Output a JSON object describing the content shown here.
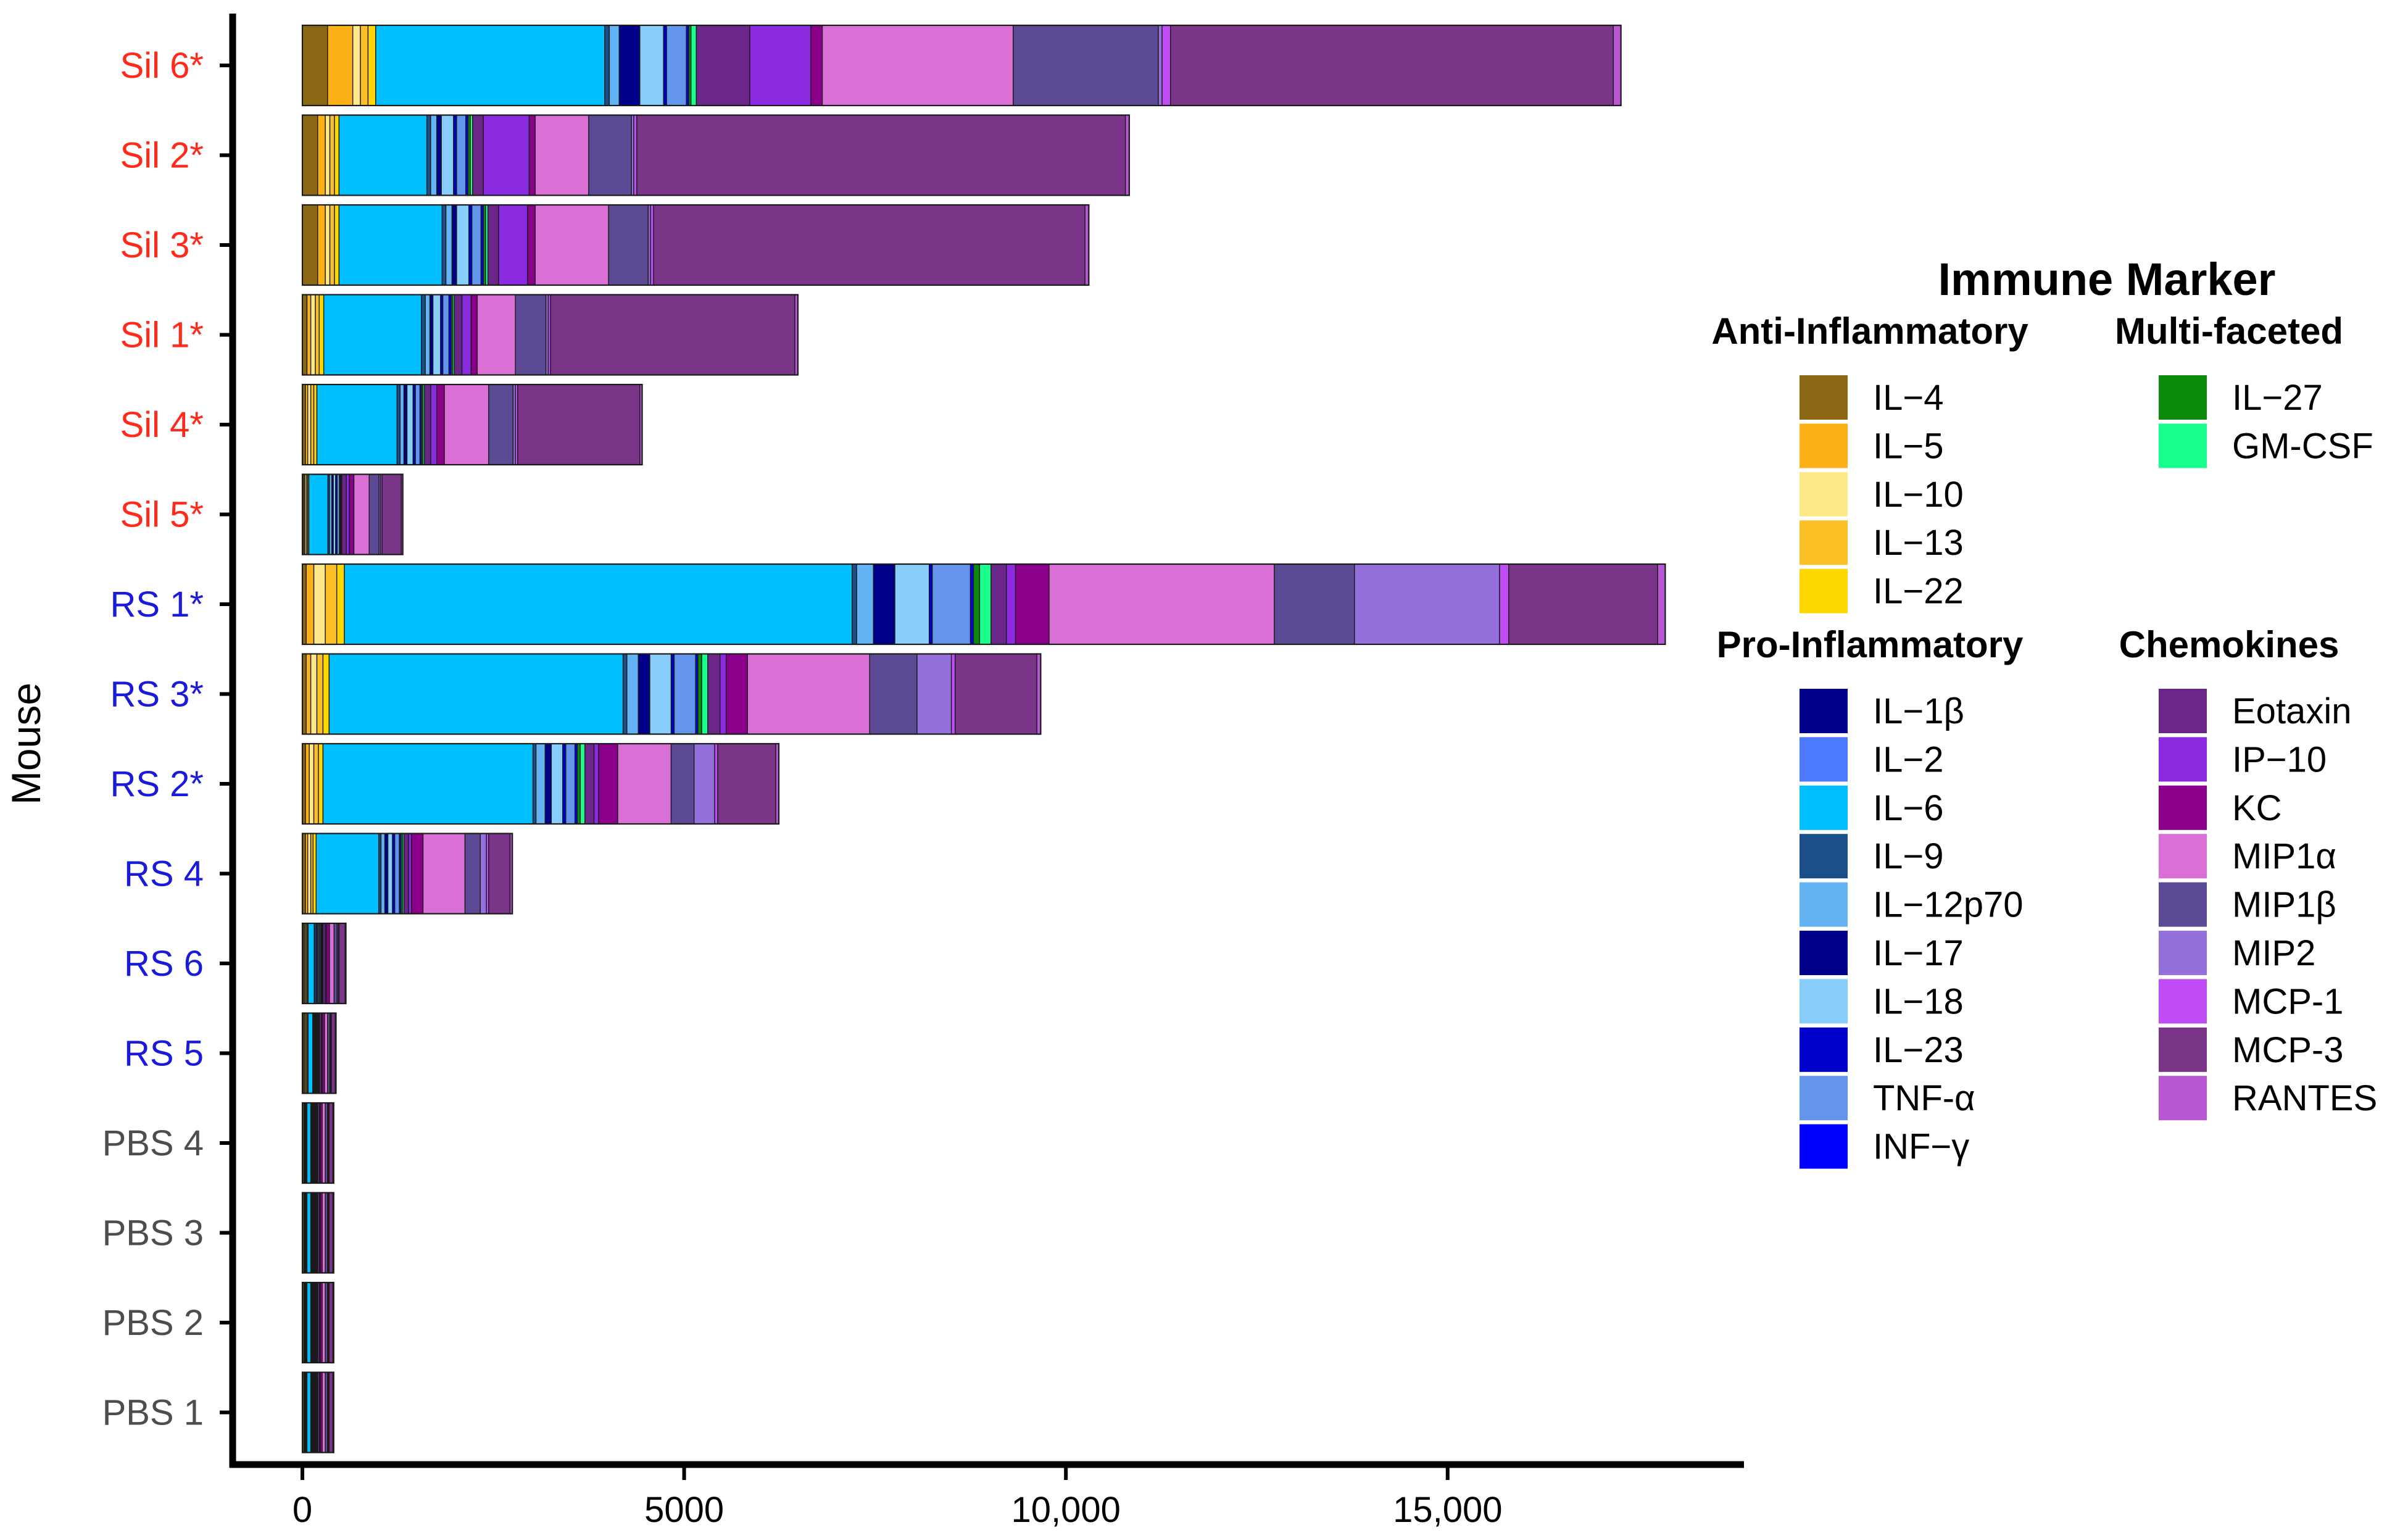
{
  "chart_data": {
    "type": "bar",
    "orientation": "horizontal",
    "stacked": true,
    "ylabel": "Mouse",
    "xlabel": "",
    "xlim": [
      -900,
      18800
    ],
    "xticks": [
      {
        "value": 0,
        "label": "0"
      },
      {
        "value": 5000,
        "label": "5000"
      },
      {
        "value": 10000,
        "label": "10,000"
      },
      {
        "value": 15000,
        "label": "15,000"
      }
    ],
    "grid": false,
    "legend_position": "right",
    "categories": [
      {
        "label": "Sil 6*",
        "group": "Sil",
        "color": "#ff2a1a"
      },
      {
        "label": "Sil 2*",
        "group": "Sil",
        "color": "#ff2a1a"
      },
      {
        "label": "Sil 3*",
        "group": "Sil",
        "color": "#ff2a1a"
      },
      {
        "label": "Sil 1*",
        "group": "Sil",
        "color": "#ff2a1a"
      },
      {
        "label": "Sil 4*",
        "group": "Sil",
        "color": "#ff2a1a"
      },
      {
        "label": "Sil 5*",
        "group": "Sil",
        "color": "#ff2a1a"
      },
      {
        "label": "RS 1*",
        "group": "RS",
        "color": "#1a1adb"
      },
      {
        "label": "RS 3*",
        "group": "RS",
        "color": "#1a1adb"
      },
      {
        "label": "RS 2*",
        "group": "RS",
        "color": "#1a1adb"
      },
      {
        "label": "RS 4",
        "group": "RS",
        "color": "#1a1adb"
      },
      {
        "label": "RS 6",
        "group": "RS",
        "color": "#1a1adb"
      },
      {
        "label": "RS 5",
        "group": "RS",
        "color": "#1a1adb"
      },
      {
        "label": "PBS 4",
        "group": "PBS",
        "color": "#4d4d4d"
      },
      {
        "label": "PBS 3",
        "group": "PBS",
        "color": "#4d4d4d"
      },
      {
        "label": "PBS 2",
        "group": "PBS",
        "color": "#4d4d4d"
      },
      {
        "label": "PBS 1",
        "group": "PBS",
        "color": "#4d4d4d"
      }
    ],
    "series": [
      {
        "name": "IL−4",
        "color": "#8b6914",
        "values": [
          330,
          200,
          200,
          60,
          40,
          20,
          50,
          50,
          40,
          40,
          20,
          20,
          20,
          20,
          20,
          20
        ]
      },
      {
        "name": "IL−5",
        "color": "#fbb117",
        "values": [
          330,
          100,
          100,
          50,
          30,
          15,
          100,
          60,
          50,
          30,
          15,
          15,
          10,
          10,
          10,
          10
        ]
      },
      {
        "name": "IL−10",
        "color": "#ffe88a",
        "values": [
          100,
          60,
          60,
          60,
          40,
          20,
          150,
          80,
          60,
          40,
          15,
          15,
          10,
          10,
          10,
          10
        ]
      },
      {
        "name": "IL−13",
        "color": "#fcbf26",
        "values": [
          100,
          60,
          60,
          50,
          40,
          15,
          150,
          80,
          60,
          30,
          15,
          15,
          10,
          10,
          10,
          10
        ]
      },
      {
        "name": "IL−22",
        "color": "#ffd700",
        "values": [
          100,
          60,
          60,
          60,
          40,
          15,
          100,
          80,
          60,
          40,
          10,
          10,
          10,
          10,
          10,
          10
        ]
      },
      {
        "name": "IL−6",
        "color": "#00bfff",
        "values": [
          3000,
          1150,
          1350,
          1280,
          1050,
          250,
          6650,
          3850,
          2750,
          820,
          80,
          60,
          50,
          50,
          50,
          50
        ]
      },
      {
        "name": "IL−9",
        "color": "#1b4f8a",
        "values": [
          60,
          50,
          50,
          50,
          40,
          20,
          60,
          50,
          40,
          30,
          15,
          10,
          10,
          10,
          10,
          10
        ]
      },
      {
        "name": "IL−12p70",
        "color": "#63b3f5",
        "values": [
          130,
          80,
          80,
          60,
          50,
          30,
          220,
          150,
          120,
          50,
          15,
          10,
          10,
          10,
          10,
          10
        ]
      },
      {
        "name": "IL−17",
        "color": "#00008b",
        "values": [
          270,
          60,
          60,
          40,
          40,
          20,
          280,
          150,
          80,
          40,
          15,
          10,
          10,
          10,
          10,
          10
        ]
      },
      {
        "name": "IL−18",
        "color": "#87cefa",
        "values": [
          310,
          160,
          160,
          100,
          80,
          30,
          450,
          280,
          150,
          60,
          15,
          10,
          10,
          10,
          10,
          10
        ]
      },
      {
        "name": "IL−23",
        "color": "#0000cd",
        "values": [
          40,
          40,
          40,
          30,
          30,
          20,
          40,
          40,
          40,
          30,
          10,
          10,
          10,
          10,
          10,
          10
        ]
      },
      {
        "name": "TNF-α",
        "color": "#6495ed",
        "values": [
          260,
          120,
          120,
          80,
          60,
          30,
          500,
          280,
          120,
          60,
          15,
          10,
          10,
          10,
          10,
          10
        ]
      },
      {
        "name": "INF−γ",
        "color": "#0000ff",
        "values": [
          30,
          30,
          30,
          30,
          20,
          10,
          40,
          30,
          30,
          20,
          10,
          10,
          10,
          10,
          10,
          10
        ]
      },
      {
        "name": "IL−27",
        "color": "#0b8a0b",
        "values": [
          30,
          30,
          30,
          20,
          20,
          10,
          80,
          50,
          40,
          20,
          10,
          10,
          10,
          10,
          10,
          10
        ]
      },
      {
        "name": "GM-CSF",
        "color": "#1aff8c",
        "values": [
          70,
          30,
          30,
          20,
          20,
          10,
          150,
          80,
          60,
          20,
          10,
          10,
          10,
          10,
          10,
          10
        ]
      },
      {
        "name": "Eotaxin",
        "color": "#6a2688",
        "values": [
          700,
          140,
          140,
          100,
          80,
          60,
          200,
          160,
          120,
          60,
          30,
          25,
          25,
          25,
          25,
          25
        ]
      },
      {
        "name": "IP−10",
        "color": "#8a2be2",
        "values": [
          800,
          600,
          380,
          120,
          80,
          40,
          120,
          80,
          60,
          40,
          15,
          10,
          10,
          10,
          10,
          10
        ]
      },
      {
        "name": "KC",
        "color": "#8b008b",
        "values": [
          150,
          80,
          100,
          80,
          100,
          60,
          440,
          280,
          250,
          150,
          40,
          30,
          25,
          25,
          25,
          25
        ]
      },
      {
        "name": "MIP1α",
        "color": "#da70d6",
        "values": [
          2500,
          700,
          960,
          500,
          580,
          200,
          2950,
          1600,
          700,
          550,
          60,
          40,
          40,
          40,
          40,
          40
        ]
      },
      {
        "name": "MIP1β",
        "color": "#5c4a94",
        "values": [
          1900,
          560,
          520,
          400,
          320,
          130,
          1050,
          620,
          300,
          200,
          40,
          30,
          30,
          30,
          30,
          30
        ]
      },
      {
        "name": "MIP2",
        "color": "#9370db",
        "values": [
          50,
          30,
          30,
          30,
          30,
          20,
          1900,
          450,
          270,
          80,
          15,
          10,
          10,
          10,
          10,
          10
        ]
      },
      {
        "name": "MCP-1",
        "color": "#c04cf5",
        "values": [
          110,
          40,
          40,
          30,
          30,
          20,
          120,
          50,
          40,
          30,
          10,
          10,
          10,
          10,
          10,
          10
        ]
      },
      {
        "name": "MCP-3",
        "color": "#7a3588",
        "values": [
          5800,
          6400,
          5650,
          3200,
          1600,
          250,
          1950,
          1070,
          760,
          280,
          80,
          50,
          50,
          50,
          50,
          50
        ]
      },
      {
        "name": "RANTES",
        "color": "#b956d4",
        "values": [
          100,
          50,
          50,
          40,
          30,
          20,
          100,
          50,
          40,
          30,
          10,
          10,
          10,
          10,
          10,
          10
        ]
      }
    ]
  },
  "legend": {
    "title": "Immune Marker",
    "groups": [
      {
        "title": "Anti-Inflammatory",
        "items": [
          {
            "label": "IL−4",
            "color": "#8b6914"
          },
          {
            "label": "IL−5",
            "color": "#fbb117"
          },
          {
            "label": "IL−10",
            "color": "#ffe88a"
          },
          {
            "label": "IL−13",
            "color": "#fcbf26"
          },
          {
            "label": "IL−22",
            "color": "#ffd700"
          }
        ]
      },
      {
        "title": "Multi-faceted",
        "items": [
          {
            "label": "IL−27",
            "color": "#0b8a0b"
          },
          {
            "label": "GM-CSF",
            "color": "#1aff8c"
          }
        ]
      },
      {
        "title": "Pro-Inflammatory",
        "items": [
          {
            "label": "IL−1β",
            "color": "#00008b"
          },
          {
            "label": "IL−2",
            "color": "#4d79ff"
          },
          {
            "label": "IL−6",
            "color": "#00bfff"
          },
          {
            "label": "IL−9",
            "color": "#1b4f8a"
          },
          {
            "label": "IL−12p70",
            "color": "#63b3f5"
          },
          {
            "label": "IL−17",
            "color": "#00008b"
          },
          {
            "label": "IL−18",
            "color": "#87cefa"
          },
          {
            "label": "IL−23",
            "color": "#0000cd"
          },
          {
            "label": "TNF-α",
            "color": "#6495ed"
          },
          {
            "label": "INF−γ",
            "color": "#0000ff"
          }
        ]
      },
      {
        "title": "Chemokines",
        "items": [
          {
            "label": "Eotaxin",
            "color": "#6a2688"
          },
          {
            "label": "IP−10",
            "color": "#8a2be2"
          },
          {
            "label": "KC",
            "color": "#8b008b"
          },
          {
            "label": "MIP1α",
            "color": "#da70d6"
          },
          {
            "label": "MIP1β",
            "color": "#5c4a94"
          },
          {
            "label": "MIP2",
            "color": "#9370db"
          },
          {
            "label": "MCP-1",
            "color": "#c04cf5"
          },
          {
            "label": "MCP-3",
            "color": "#7a3588"
          },
          {
            "label": "RANTES",
            "color": "#b956d4"
          }
        ]
      }
    ]
  }
}
